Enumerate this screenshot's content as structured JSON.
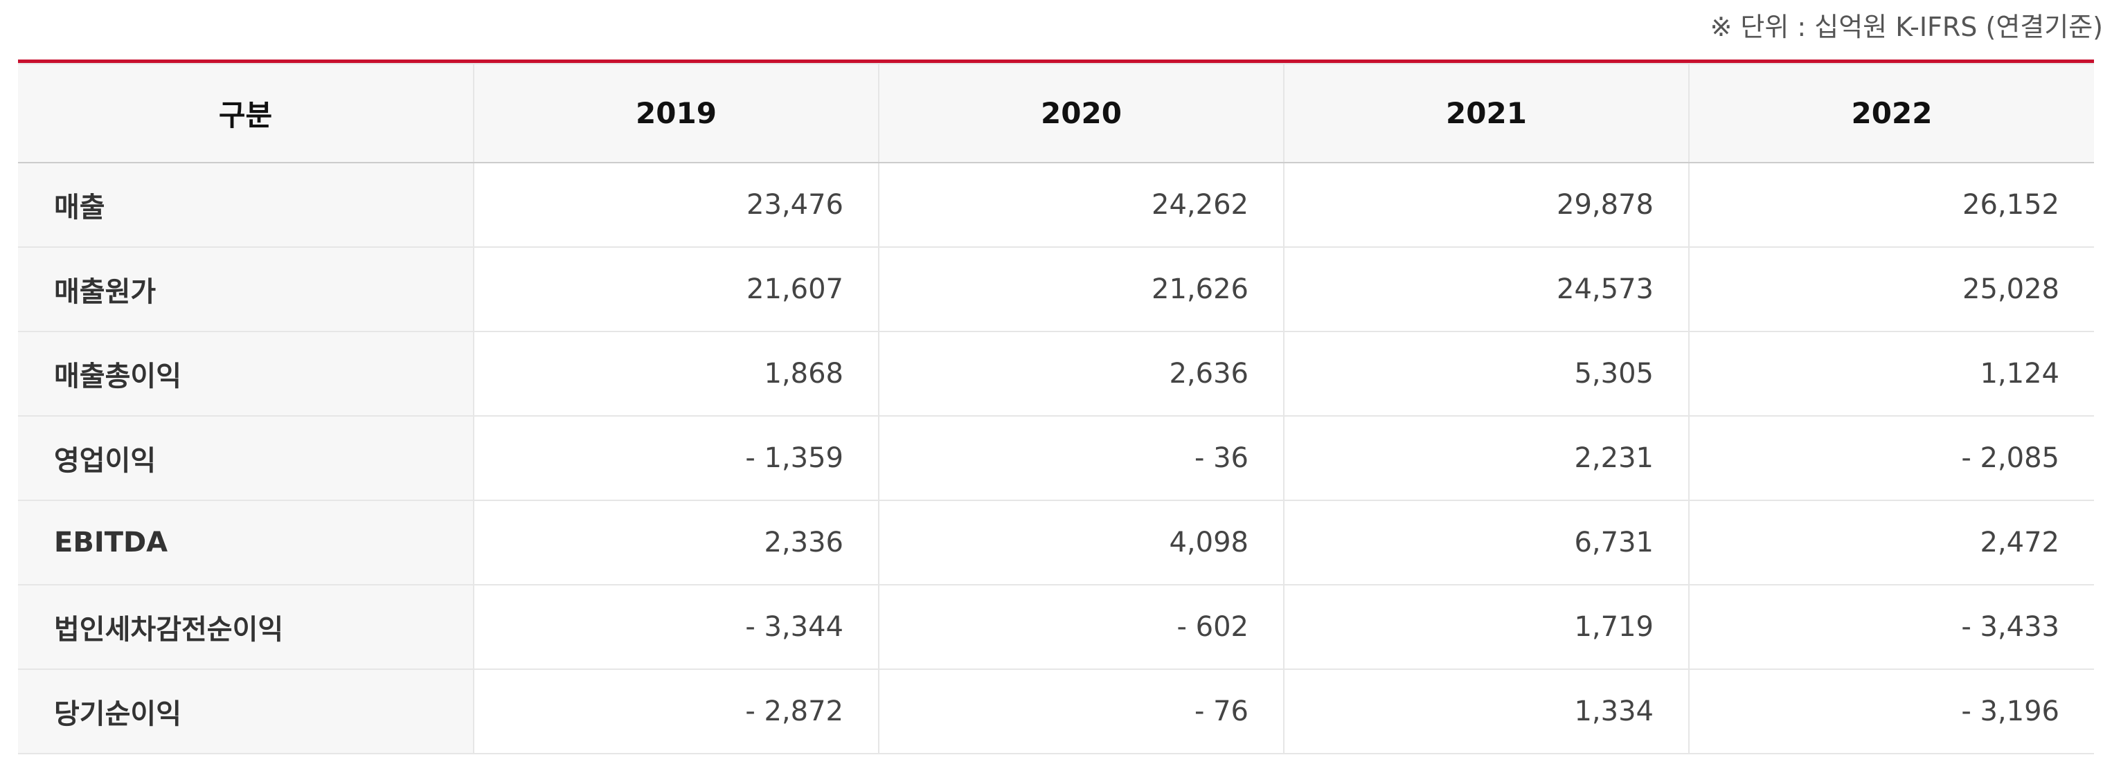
{
  "unit_note": "※ 단위 : 십억원 K-IFRS (연결기준)",
  "table": {
    "headers": [
      "구분",
      "2019",
      "2020",
      "2021",
      "2022"
    ],
    "rows": [
      {
        "label": "매출",
        "values": [
          "23,476",
          "24,262",
          "29,878",
          "26,152"
        ]
      },
      {
        "label": "매출원가",
        "values": [
          "21,607",
          "21,626",
          "24,573",
          "25,028"
        ]
      },
      {
        "label": "매출총이익",
        "values": [
          "1,868",
          "2,636",
          "5,305",
          "1,124"
        ]
      },
      {
        "label": "영업이익",
        "values": [
          "- 1,359",
          "- 36",
          "2,231",
          "- 2,085"
        ]
      },
      {
        "label": "EBITDA",
        "values": [
          "2,336",
          "4,098",
          "6,731",
          "2,472"
        ]
      },
      {
        "label": "법인세차감전순이익",
        "values": [
          "- 3,344",
          "- 602",
          "1,719",
          "- 3,433"
        ]
      },
      {
        "label": "당기순이익",
        "values": [
          "- 2,872",
          "- 76",
          "1,334",
          "- 3,196"
        ]
      }
    ]
  },
  "colors": {
    "accent_top_border": "#c8102e",
    "header_bg": "#f7f7f7",
    "grid": "#e6e6e6"
  }
}
